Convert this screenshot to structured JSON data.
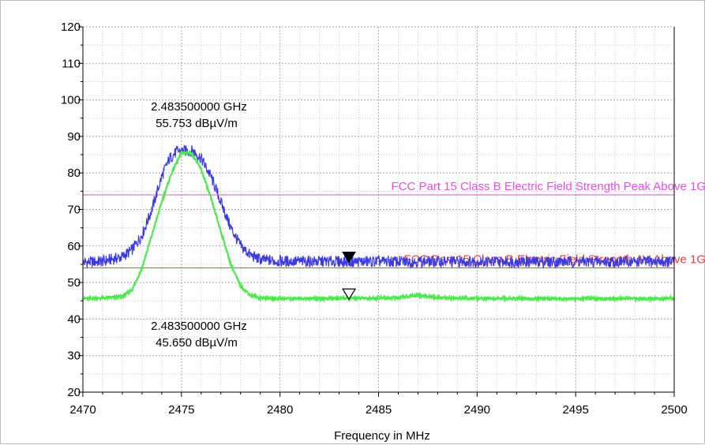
{
  "chart_data": {
    "type": "line",
    "xlabel": "Frequency in MHz",
    "ylabel": "",
    "xlim": [
      2470,
      2500
    ],
    "ylim": [
      20,
      120
    ],
    "x_ticks": [
      2470,
      2475,
      2480,
      2485,
      2490,
      2495,
      2500
    ],
    "y_ticks": [
      20,
      30,
      40,
      50,
      60,
      70,
      80,
      90,
      100,
      110,
      120
    ],
    "grid": true,
    "series": [
      {
        "color": "#3a3adf",
        "x": [
          2470,
          2471,
          2472,
          2472.5,
          2473,
          2473.5,
          2474,
          2474.4,
          2474.8,
          2475.2,
          2475.6,
          2476,
          2476.5,
          2477,
          2477.5,
          2478,
          2478.5,
          2479,
          2480,
          2483.5,
          2490,
          2495,
          2500
        ],
        "values": [
          55.5,
          55.8,
          57,
          59,
          63,
          70,
          79,
          84,
          86,
          86,
          86,
          84,
          79,
          72,
          65,
          60,
          57.5,
          56.3,
          55.8,
          55.753,
          55.7,
          55.7,
          55.7
        ]
      },
      {
        "color": "#4ee84e",
        "x": [
          2470,
          2471,
          2472,
          2472.5,
          2473,
          2473.5,
          2474,
          2474.5,
          2475,
          2475.5,
          2476,
          2476.5,
          2477,
          2477.5,
          2478,
          2478.5,
          2479,
          2480,
          2483.5,
          2486,
          2487,
          2488,
          2490,
          2500
        ],
        "values": [
          45.6,
          45.7,
          46.2,
          48,
          54,
          63,
          72,
          80,
          85.5,
          85.5,
          81,
          73,
          64,
          55,
          49,
          46.5,
          45.8,
          45.6,
          45.65,
          45.8,
          46.6,
          45.8,
          45.6,
          45.6
        ]
      }
    ],
    "limit_lines": [
      {
        "label": "FCC Part 15 Class B Electric Field Strength Peak Above 1G",
        "value": 74,
        "color": "#e64ee6"
      },
      {
        "label": "FCC Part 15 Class B Electric Field Strength AV Above 1G",
        "value": 54,
        "color": "#e63c3c"
      }
    ],
    "markers": [
      {
        "type": "filled",
        "x": 2483.5,
        "y": 55.753,
        "freq": "2.483500000 GHz",
        "level": "55.753 dBµV/m"
      },
      {
        "type": "hollow",
        "x": 2483.5,
        "y": 45.65,
        "freq": "2.483500000 GHz",
        "level": "45.650 dBµV/m"
      }
    ]
  }
}
